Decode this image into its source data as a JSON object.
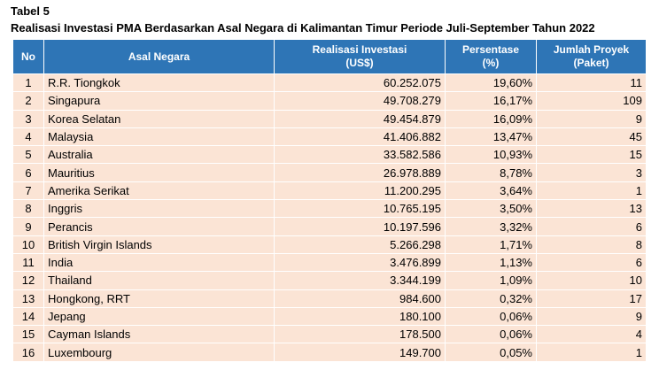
{
  "caption": {
    "label": "Tabel 5",
    "title": "Realisasi Investasi PMA Berdasarkan Asal Negara di Kalimantan Timur Periode Juli-September Tahun 2022"
  },
  "headers": {
    "no": "No",
    "country": "Asal Negara",
    "investment_line1": "Realisasi Investasi",
    "investment_line2": "(US$)",
    "percent_line1": "Persentase",
    "percent_line2": "(%)",
    "projects_line1": "Jumlah Proyek",
    "projects_line2": "(Paket)"
  },
  "rows": [
    {
      "no": "1",
      "country": "R.R. Tiongkok",
      "investment": "60.252.075",
      "percent": "19,60%",
      "projects": "11"
    },
    {
      "no": "2",
      "country": "Singapura",
      "investment": "49.708.279",
      "percent": "16,17%",
      "projects": "109"
    },
    {
      "no": "3",
      "country": "Korea Selatan",
      "investment": "49.454.879",
      "percent": "16,09%",
      "projects": "9"
    },
    {
      "no": "4",
      "country": "Malaysia",
      "investment": "41.406.882",
      "percent": "13,47%",
      "projects": "45"
    },
    {
      "no": "5",
      "country": "Australia",
      "investment": "33.582.586",
      "percent": "10,93%",
      "projects": "15"
    },
    {
      "no": "6",
      "country": "Mauritius",
      "investment": "26.978.889",
      "percent": "8,78%",
      "projects": "3"
    },
    {
      "no": "7",
      "country": "Amerika Serikat",
      "investment": "11.200.295",
      "percent": "3,64%",
      "projects": "1"
    },
    {
      "no": "8",
      "country": "Inggris",
      "investment": "10.765.195",
      "percent": "3,50%",
      "projects": "13"
    },
    {
      "no": "9",
      "country": "Perancis",
      "investment": "10.197.596",
      "percent": "3,32%",
      "projects": "6"
    },
    {
      "no": "10",
      "country": "British Virgin Islands",
      "investment": "5.266.298",
      "percent": "1,71%",
      "projects": "8"
    },
    {
      "no": "11",
      "country": "India",
      "investment": "3.476.899",
      "percent": "1,13%",
      "projects": "6"
    },
    {
      "no": "12",
      "country": "Thailand",
      "investment": "3.344.199",
      "percent": "1,09%",
      "projects": "10"
    },
    {
      "no": "13",
      "country": "Hongkong, RRT",
      "investment": "984.600",
      "percent": "0,32%",
      "projects": "17"
    },
    {
      "no": "14",
      "country": "Jepang",
      "investment": "180.100",
      "percent": "0,06%",
      "projects": "9"
    },
    {
      "no": "15",
      "country": "Cayman Islands",
      "investment": "178.500",
      "percent": "0,06%",
      "projects": "4"
    },
    {
      "no": "16",
      "country": "Luxembourg",
      "investment": "149.700",
      "percent": "0,05%",
      "projects": "1"
    }
  ]
}
